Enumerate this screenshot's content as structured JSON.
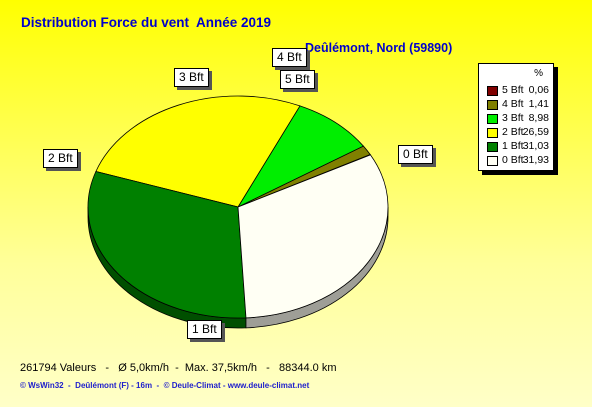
{
  "header": {
    "title": "Distribution Force du vent  Année 2019",
    "station": "Deûlémont, Nord (59890)"
  },
  "legend": {
    "header": "%"
  },
  "footer": {
    "stats": "261794 Valeurs   -   Ø 5,0km/h  -  Max. 37,5km/h   -   88344.0 km",
    "credits": "© WsWin32  -  Deûlémont (F) - 16m  -  © Deule-Climat - www.deule-climat.net"
  },
  "chart_data": {
    "type": "pie",
    "title": "Distribution Force du vent  Année 2019",
    "subtitle": "Deûlémont, Nord (59890)",
    "legend_position": "top-right",
    "legend_header": "%",
    "slices": [
      {
        "label": "5 Bft",
        "value": 0.06,
        "display": "0,06",
        "color": "#800000"
      },
      {
        "label": "4 Bft",
        "value": 1.41,
        "display": "1,41",
        "color": "#808000"
      },
      {
        "label": "3 Bft",
        "value": 8.98,
        "display": "8,98",
        "color": "#00ee00"
      },
      {
        "label": "2 Bft",
        "value": 26.59,
        "display": "26,59",
        "color": "#ffff00"
      },
      {
        "label": "1 Bft",
        "value": 31.03,
        "display": "31,03",
        "color": "#008000"
      },
      {
        "label": "0 Bft",
        "value": 31.93,
        "display": "31,93",
        "color": "#fffff4"
      }
    ]
  }
}
